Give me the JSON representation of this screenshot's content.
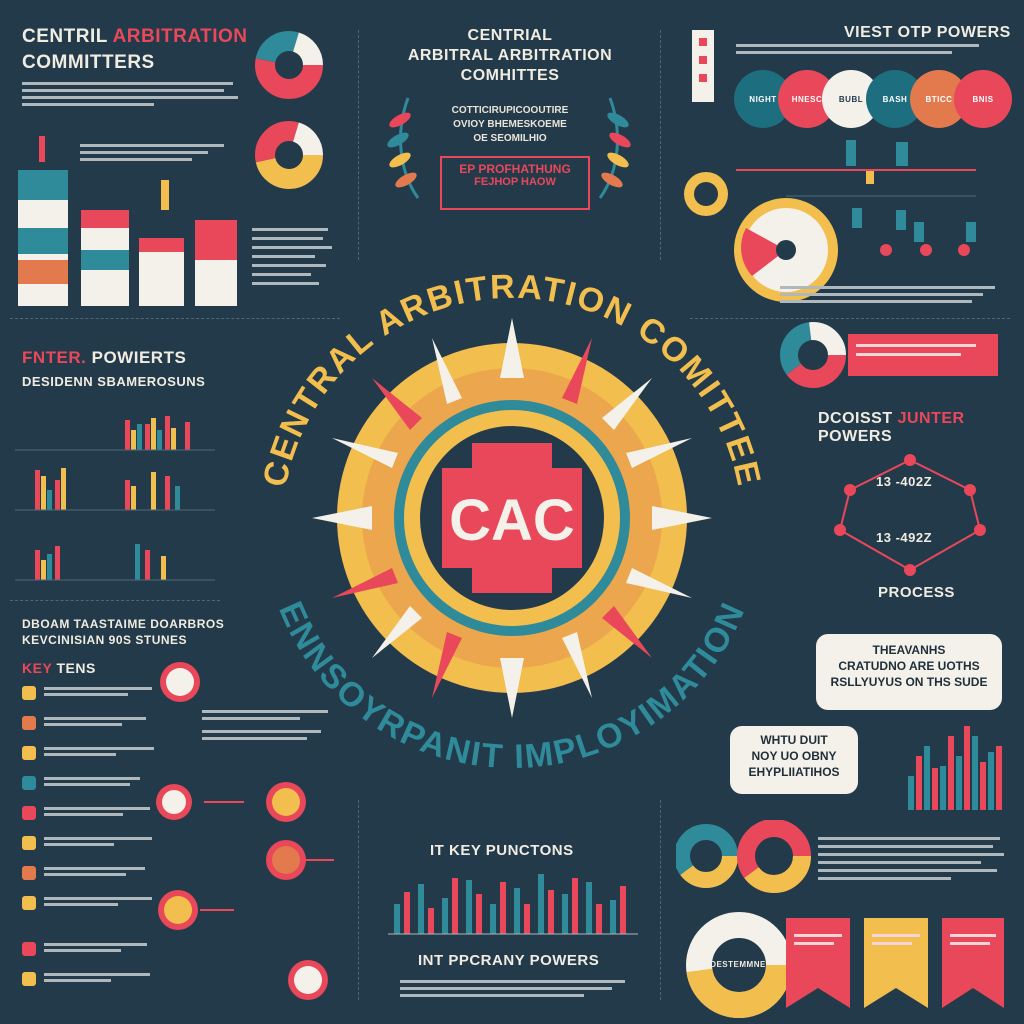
{
  "colors": {
    "background": "#233a4a",
    "red": "#e8485a",
    "yellow": "#f2be4e",
    "teal": "#2f8a9a",
    "cream": "#f4f1ea",
    "orange": "#e27a4e",
    "navy": "#1d3140"
  },
  "header_left": {
    "line1_a": "CENTRIL",
    "line1_b": "ARBITRATION",
    "line2": "COMMITTERS"
  },
  "header_center": {
    "line1": "CENTRIAL",
    "line2": "ARBITRAL ARBITRATION",
    "line3": "COMHITTES"
  },
  "header_right": {
    "title": "VIEST OTP POWERS"
  },
  "right_pills": [
    "NIGHT",
    "HNESC",
    "BUBL",
    "BASH",
    "BTICC",
    "BNIS"
  ],
  "ribbon": {
    "line1": "EP PROFHATHUNG",
    "line2": "FEJHOP HAOW"
  },
  "center": {
    "badge": "CAC",
    "arc_top": "CENTRAL ARBITRATION COMITTEE",
    "arc_bottom": "ENNSOYRPANIT IMPLOYIMATION"
  },
  "left_section": {
    "title_a": "FNTER.",
    "title_b": "POWIERTS",
    "subtitle": "DESIDENN SBAMEROSUNS"
  },
  "left_lower": {
    "line1": "DBOAM TAASTAIME DOARBROS",
    "line2": "KEVCINISIAN 90S STUNES",
    "key_a": "KEY",
    "key_b": "TENS"
  },
  "right_process": {
    "title_a": "DCOISST",
    "title_b": "JUNTER",
    "title_c": "POWERS",
    "label_top": "13 -402Z",
    "label_bottom": "13 -492Z",
    "caption": "PROCESS"
  },
  "speech_large": {
    "line1": "THEAVANHS",
    "line2": "CRATUDNO ARE UOTHS",
    "line3": "RSLLYUYUS ON THS SUDE"
  },
  "speech_small": {
    "line1": "WHTU DUIT",
    "line2": "NOY UO OBNY",
    "line3": "EHYPLIIATIHOS"
  },
  "bottom_center": {
    "key_functions": "IT KEY PUNCTONS",
    "powers": "INT PPCRANY POWERS"
  },
  "bottom_right": {
    "donut_label": "DESTEMMNE"
  },
  "center_small": {
    "line1": "COTTICIRUPICOOUTIRE",
    "line2": "OVIOY BHEMESKOEME",
    "line3": "OE SEOMILHIO"
  }
}
